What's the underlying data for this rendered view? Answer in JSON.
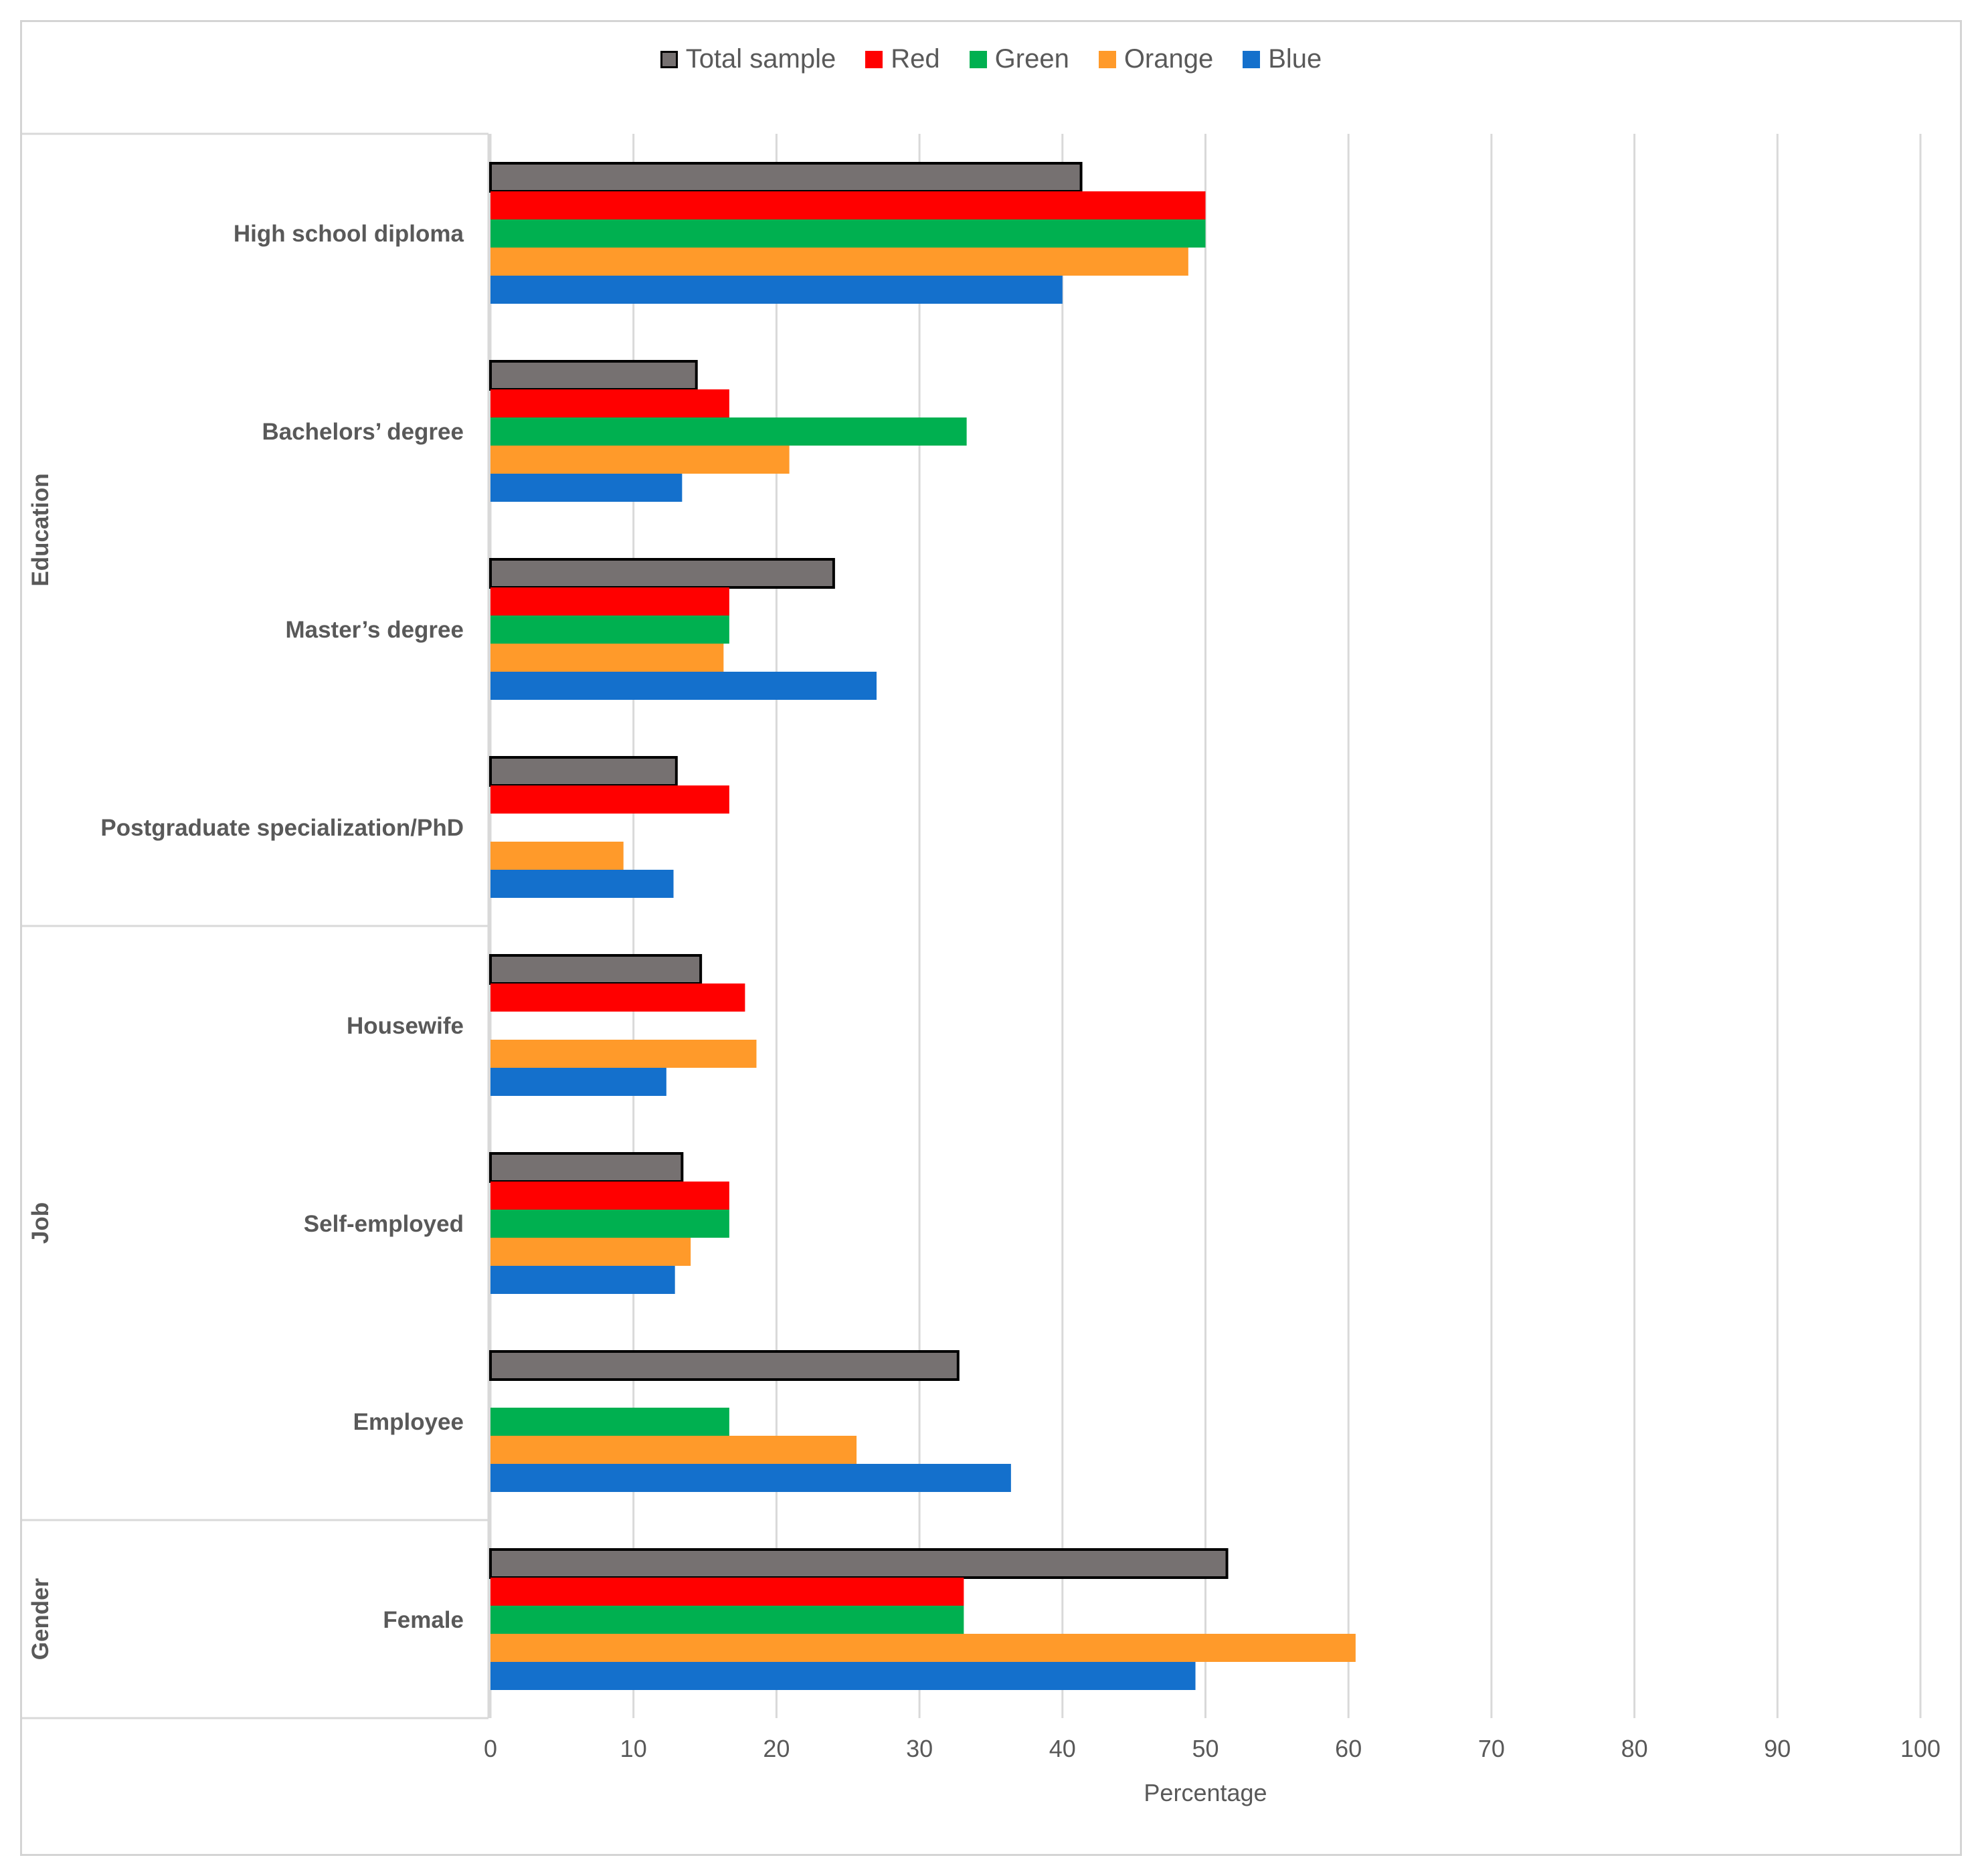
{
  "chart_data": {
    "type": "bar",
    "orientation": "horizontal",
    "xlabel": "Percentage",
    "xlim": [
      0,
      100
    ],
    "xticks": [
      "0",
      "10",
      "20",
      "30",
      "40",
      "50",
      "60",
      "70",
      "80",
      "90",
      "100"
    ],
    "grid": true,
    "legend_position": "top-center",
    "groups": [
      {
        "name": "Education",
        "categories": [
          "High school diploma",
          "Bachelors’ degree",
          "Master’s degree",
          "Postgraduate specialization/PhD"
        ]
      },
      {
        "name": "Job",
        "categories": [
          "Housewife",
          "Self-employed",
          "Employee"
        ]
      },
      {
        "name": "Gender",
        "categories": [
          "Female"
        ]
      }
    ],
    "categories": [
      "High school diploma",
      "Bachelors’ degree",
      "Master’s degree",
      "Postgraduate specialization/PhD",
      "Housewife",
      "Self-employed",
      "Employee",
      "Female"
    ],
    "series": [
      {
        "name": "Total sample",
        "color": "#767171",
        "outlined": true,
        "values": [
          41.3,
          14.4,
          24.0,
          13.0,
          14.7,
          13.4,
          32.7,
          51.5
        ]
      },
      {
        "name": "Red",
        "color": "#ff0000",
        "outlined": false,
        "values": [
          50.0,
          16.7,
          16.7,
          16.7,
          17.8,
          16.7,
          0,
          33.1
        ]
      },
      {
        "name": "Green",
        "color": "#00b050",
        "outlined": false,
        "values": [
          50.0,
          33.3,
          16.7,
          0,
          0,
          16.7,
          16.7,
          33.1
        ]
      },
      {
        "name": "Orange",
        "color": "#ff9a2a",
        "outlined": false,
        "values": [
          48.8,
          20.9,
          16.3,
          9.3,
          18.6,
          14.0,
          25.6,
          60.5
        ]
      },
      {
        "name": "Blue",
        "color": "#1470cc",
        "outlined": false,
        "values": [
          40.0,
          13.4,
          27.0,
          12.8,
          12.3,
          12.9,
          36.4,
          49.3
        ]
      }
    ]
  }
}
